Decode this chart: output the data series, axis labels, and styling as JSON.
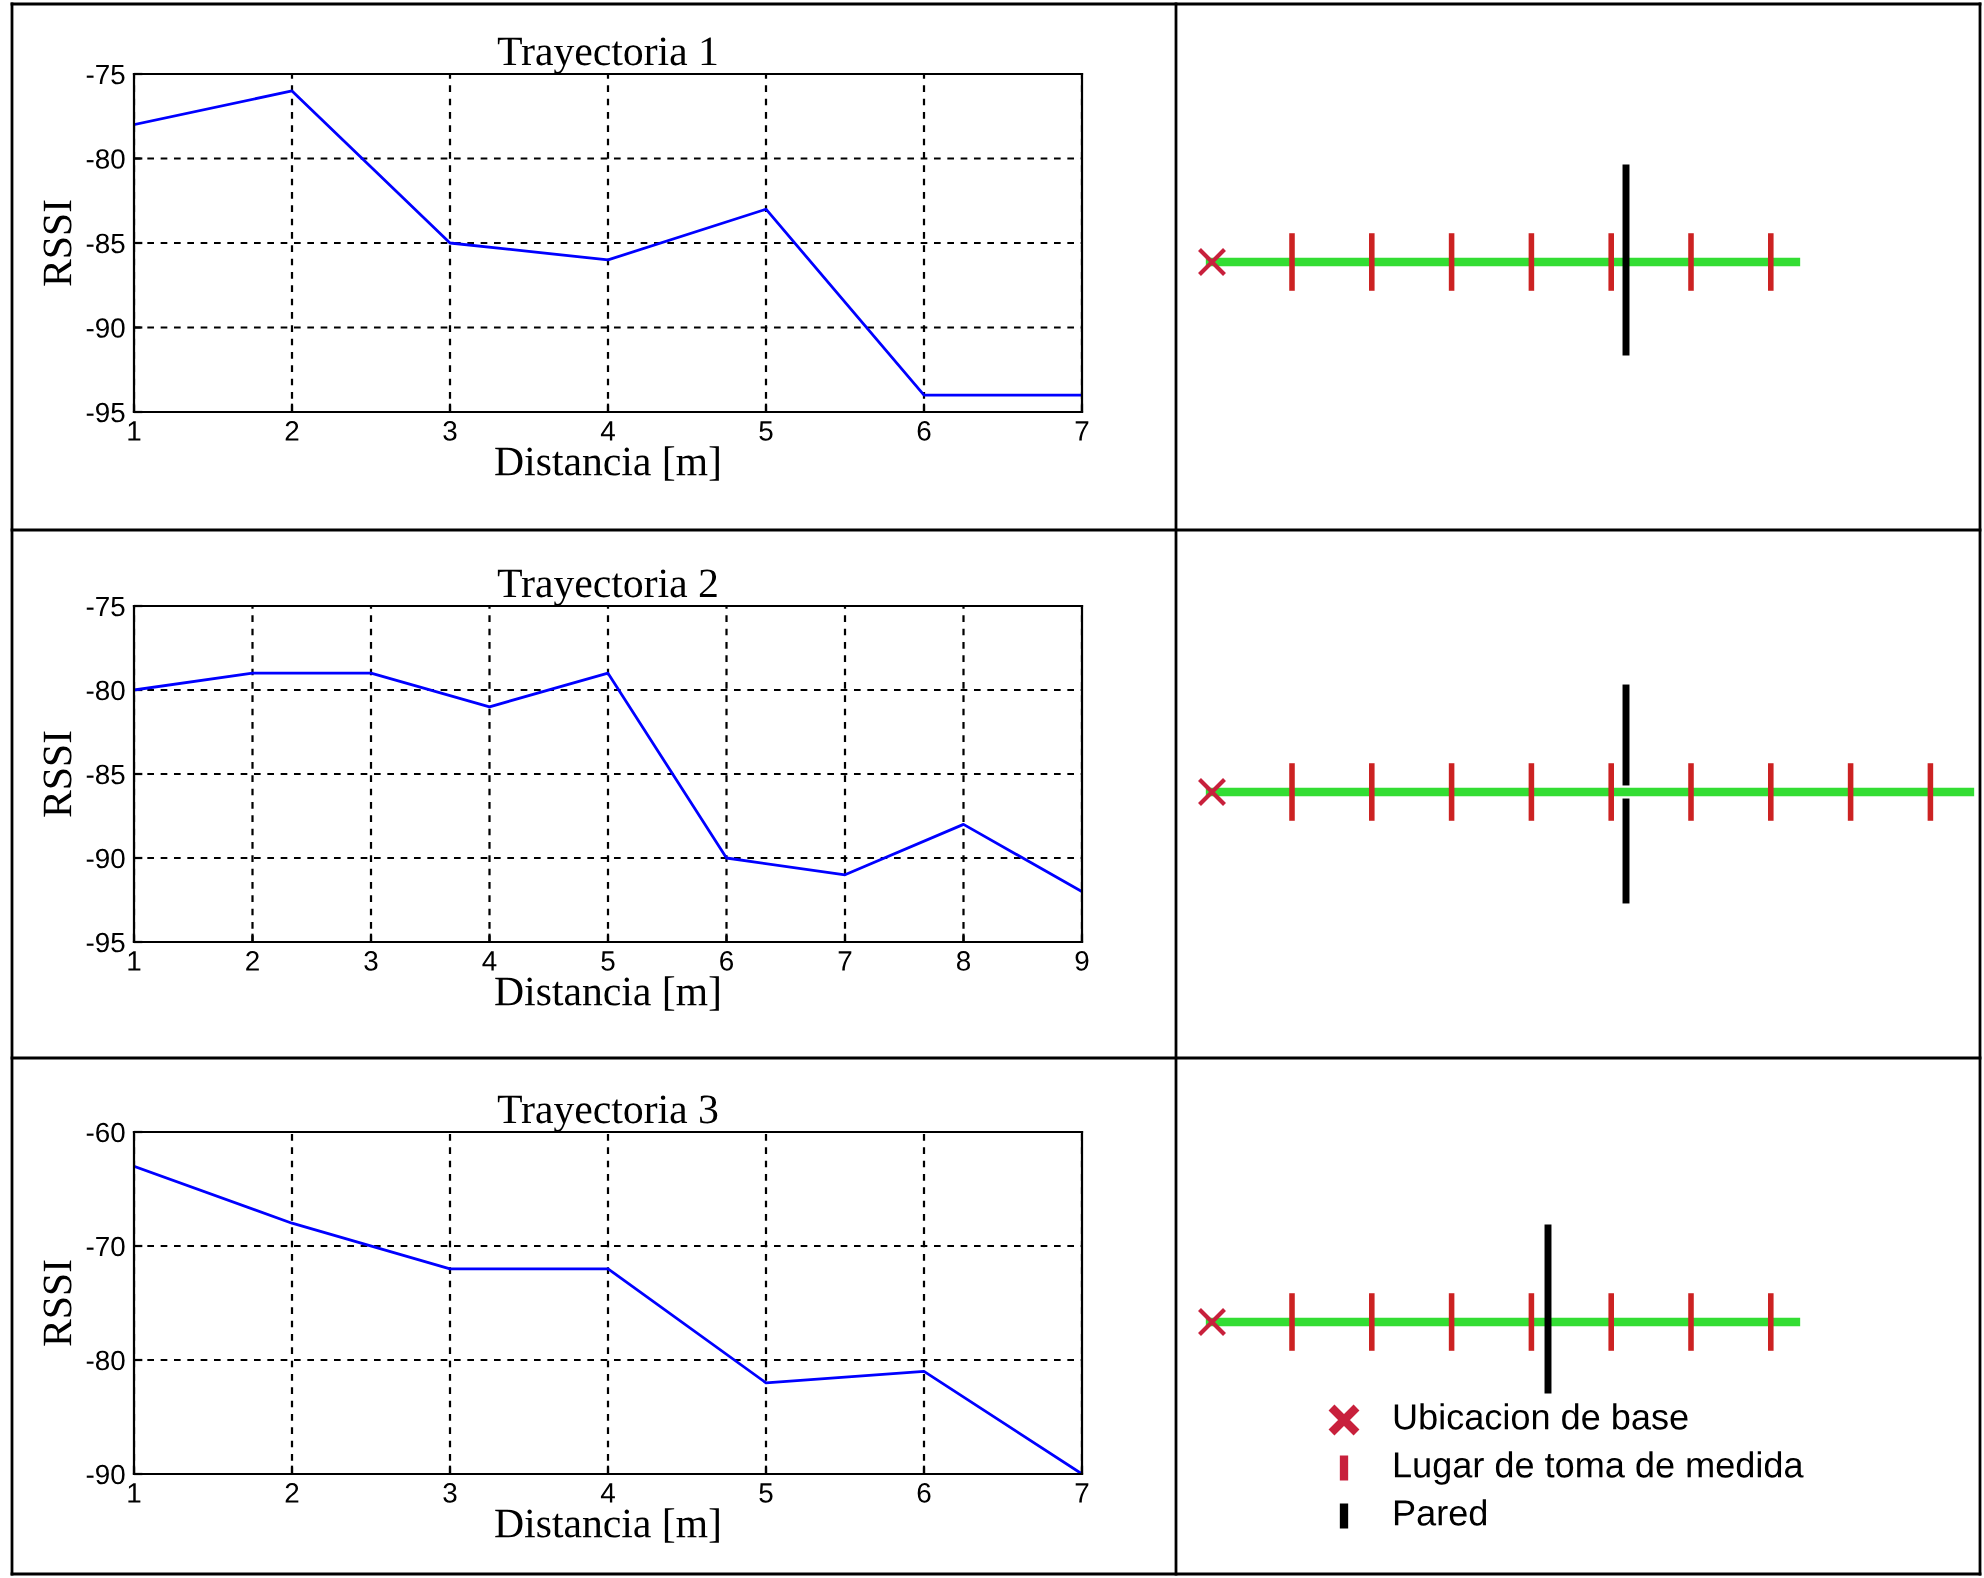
{
  "chart_data": [
    {
      "type": "line",
      "title": "Trayectoria 1",
      "xlabel": "Distancia [m]",
      "ylabel": "RSSI",
      "x": [
        1,
        2,
        3,
        4,
        5,
        6,
        7
      ],
      "series": [
        {
          "color": "#0000ff",
          "values": [
            -78,
            -76,
            -85,
            -86,
            -83,
            -94,
            -94
          ]
        }
      ],
      "xlim": [
        1,
        7
      ],
      "ylim": [
        -95,
        -75
      ],
      "xticks": [
        1,
        2,
        3,
        4,
        5,
        6,
        7
      ],
      "yticks": [
        -95,
        -90,
        -85,
        -80,
        -75
      ],
      "grid": true,
      "legend": false,
      "marker": "none",
      "line_style": "solid"
    },
    {
      "type": "line",
      "title": "Trayectoria 2",
      "xlabel": "Distancia [m]",
      "ylabel": "RSSI",
      "x": [
        1,
        2,
        3,
        4,
        5,
        6,
        7,
        8,
        9
      ],
      "series": [
        {
          "color": "#0000ff",
          "values": [
            -80,
            -79,
            -79,
            -81,
            -79,
            -90,
            -91,
            -88,
            -92
          ]
        }
      ],
      "xlim": [
        1,
        9
      ],
      "ylim": [
        -95,
        -75
      ],
      "xticks": [
        1,
        2,
        3,
        4,
        5,
        6,
        7,
        8,
        9
      ],
      "yticks": [
        -95,
        -90,
        -85,
        -80,
        -75
      ],
      "grid": true,
      "legend": false,
      "marker": "none",
      "line_style": "solid"
    },
    {
      "type": "line",
      "title": "Trayectoria 3",
      "xlabel": "Distancia [m]",
      "ylabel": "RSSI",
      "x": [
        1,
        2,
        3,
        4,
        5,
        6,
        7
      ],
      "series": [
        {
          "color": "#0000ff",
          "values": [
            -63,
            -68,
            -72,
            -72,
            -82,
            -81,
            -90
          ]
        }
      ],
      "xlim": [
        1,
        7
      ],
      "ylim": [
        -90,
        -60
      ],
      "xticks": [
        1,
        2,
        3,
        4,
        5,
        6,
        7
      ],
      "yticks": [
        -90,
        -80,
        -70,
        -60
      ],
      "grid": true,
      "legend": false,
      "marker": "none",
      "line_style": "solid"
    },
    {
      "type": "other",
      "annotations": [
        "Ubicacion de base",
        "Lugar de toma de medida",
        "Pared"
      ]
    }
  ]
}
